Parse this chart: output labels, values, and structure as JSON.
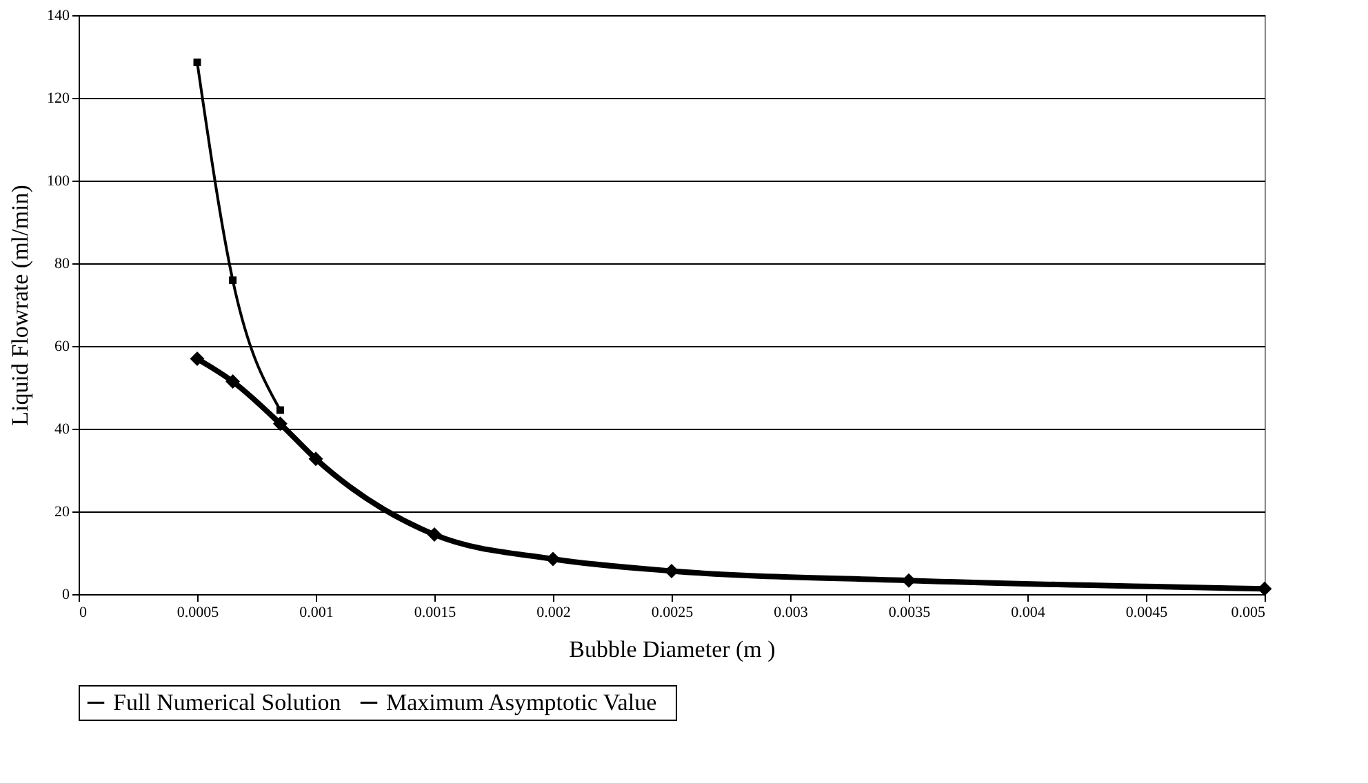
{
  "chart_data": {
    "type": "line",
    "xlabel": "Bubble   Diameter (m )",
    "ylabel": "Liquid Flowrate (ml/min)",
    "xlim": [
      0,
      0.005
    ],
    "xticks": [
      0,
      0.0005,
      0.001,
      0.0015,
      0.002,
      0.0025,
      0.003,
      0.0035,
      0.004,
      0.0045,
      0.005
    ],
    "ylim": [
      0,
      140
    ],
    "yticks": [
      0,
      20,
      40,
      60,
      80,
      100,
      120,
      140
    ],
    "grid": "y",
    "legend": "bottom",
    "series": [
      {
        "name": "Full Numerical Solution",
        "color": "#000000",
        "marker": "diamond",
        "x": [
          0.0005,
          0.00065,
          0.00085,
          0.001,
          0.0015,
          0.002,
          0.0025,
          0.0035,
          0.005
        ],
        "values": [
          56.9,
          51.4,
          41.2,
          32.7,
          14.4,
          8.5,
          5.6,
          3.3,
          1.3
        ]
      },
      {
        "name": "Maximum   Asymptotic Value",
        "color": "#000000",
        "marker": "square",
        "x": [
          0.0005,
          0.00065,
          0.00085
        ],
        "values": [
          128.6,
          75.9,
          44.5
        ]
      }
    ]
  }
}
